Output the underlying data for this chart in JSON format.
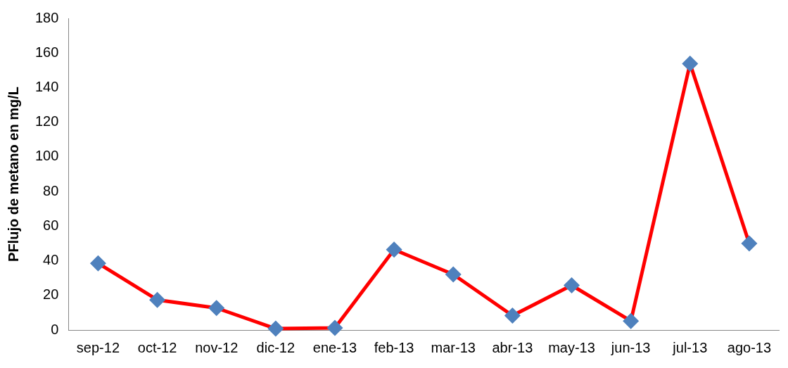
{
  "chart_data": {
    "type": "line",
    "ylabel": "PFlujo de metano en mg/L",
    "categories": [
      "sep-12",
      "oct-12",
      "nov-12",
      "dic-12",
      "ene-13",
      "feb-13",
      "mar-13",
      "abr-13",
      "may-13",
      "jun-13",
      "jul-13",
      "ago-13"
    ],
    "series": [
      {
        "color": "#ff0000",
        "colors": [
          "#4f81bd",
          "#4f81bd",
          "#4f81bd",
          "#4f81bd",
          "#4f81bd",
          "#4f81bd",
          "#4f81bd",
          "#4f81bd",
          "#4f81bd",
          "#4f81bd",
          "#4f81bd",
          "#4f81bd"
        ],
        "values": [
          38.5,
          17.4,
          12.7,
          0.8,
          1.2,
          46.4,
          32.1,
          8.3,
          25.8,
          5.2,
          153.8,
          50
        ]
      }
    ],
    "ylim": [
      0,
      180
    ],
    "yticks": [
      0,
      20,
      40,
      60,
      80,
      100,
      120,
      140,
      160,
      180
    ],
    "grid": false,
    "legend": false,
    "marker": "diamond",
    "line_style": "solid"
  }
}
